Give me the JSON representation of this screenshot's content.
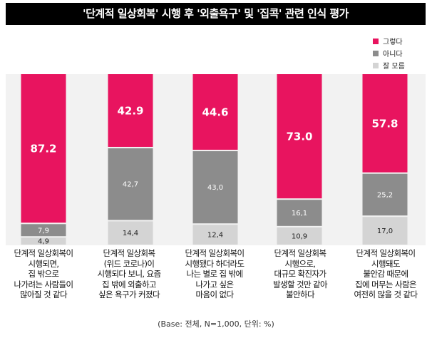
{
  "chart_data": {
    "type": "bar",
    "stacked": true,
    "percent": true,
    "title": "'단계적 일상회복' 시행 후 '외출욕구' 및 '집콕' 관련 인식 평가",
    "categories": [
      "단계적 일상회복이\n시행되면,\n집 밖으로\n나가려는 사람들이\n많아질 것 같다",
      "단계적 일상회복\n(위드 코로나)이\n시행되다 보니, 요즘\n집 밖에 외출하고\n싶은 욕구가 커졌다",
      "단계적 일상회복이\n시행됐다 하더라도\n나는 별로 집 밖에\n나가고 싶은\n마음이 없다",
      "단계적 일상회복\n시행으로,\n대규모 확진자가\n발생할 것만 같아\n불안하다",
      "단계적 일상회복이\n시행돼도\n불안감 때문에\n집에 머무는 사람은\n여전히 많을 것 같다"
    ],
    "series": [
      {
        "name": "그렇다",
        "color": "#e8145f",
        "values": [
          87.2,
          42.9,
          44.6,
          73.0,
          57.8
        ],
        "labels": [
          "87.2",
          "42.9",
          "44.6",
          "73.0",
          "57.8"
        ]
      },
      {
        "name": "아니다",
        "color": "#8c8c8c",
        "values": [
          7.9,
          42.7,
          43.0,
          16.1,
          25.2
        ],
        "labels": [
          "7,9",
          "42,7",
          "43,0",
          "16,1",
          "25,2"
        ]
      },
      {
        "name": "잘 모름",
        "color": "#d4d4d4",
        "values": [
          4.9,
          14.4,
          12.4,
          10.9,
          17.0
        ],
        "labels": [
          "4,9",
          "14,4",
          "12,4",
          "10,9",
          "17,0"
        ]
      }
    ],
    "ylim": [
      0,
      100
    ],
    "legend_position": "top-right",
    "grid": false,
    "note": "(Base: 전체, N=1,000, 단위: %)"
  }
}
